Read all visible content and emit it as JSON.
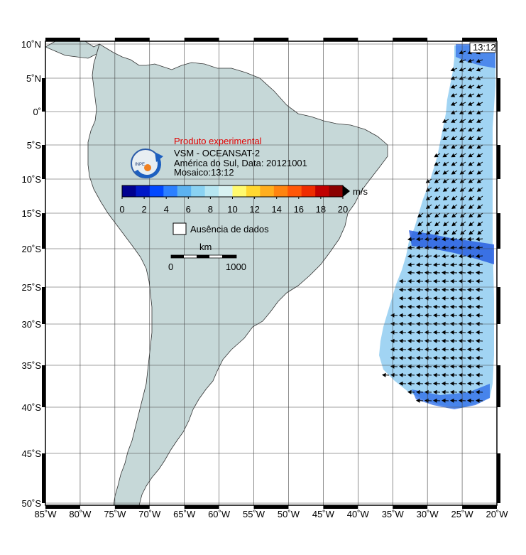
{
  "time_badge": "13:12",
  "legend": {
    "title": "Produto experimental",
    "title_color": "#e00000",
    "line1": "VSM - OCEANSAT-2",
    "line2": "América do Sul, Data: 20121001",
    "line3": "Mosaico:13:12",
    "colorbar": {
      "unit": "m/s",
      "ticks": [
        "0",
        "2",
        "4",
        "6",
        "8",
        "10",
        "12",
        "14",
        "16",
        "18",
        "20"
      ],
      "colors": [
        "#00008f",
        "#0018c8",
        "#0048ff",
        "#2c80ff",
        "#5cb2f0",
        "#8ad2f2",
        "#b6e6f2",
        "#d8f2f2",
        "#fffa6e",
        "#ffd830",
        "#ffae1e",
        "#ff8410",
        "#ff5808",
        "#ee2c00",
        "#c00000",
        "#8a0000"
      ]
    },
    "no_data_label": "Ausência de dados",
    "scale": {
      "unit": "km",
      "start": "0",
      "end": "1000"
    }
  },
  "axes": {
    "lat_labels": [
      "10˚N",
      "5˚N",
      "0˚",
      "5˚S",
      "10˚S",
      "15˚S",
      "20˚S",
      "25˚S",
      "30˚S",
      "35˚S",
      "40˚S",
      "45˚S",
      "50˚S"
    ],
    "lon_labels": [
      "85˚W",
      "80˚W",
      "75˚W",
      "70˚W",
      "65˚W",
      "60˚W",
      "55˚W",
      "50˚W",
      "45˚W",
      "40˚W",
      "35˚W",
      "30˚W",
      "25˚W",
      "20˚W"
    ]
  },
  "colors": {
    "land": "#c6d8d8",
    "ocean": "#ffffff",
    "wind_swath": "#9cd2f2",
    "wind_swath_strong": "#1a4ed8"
  }
}
